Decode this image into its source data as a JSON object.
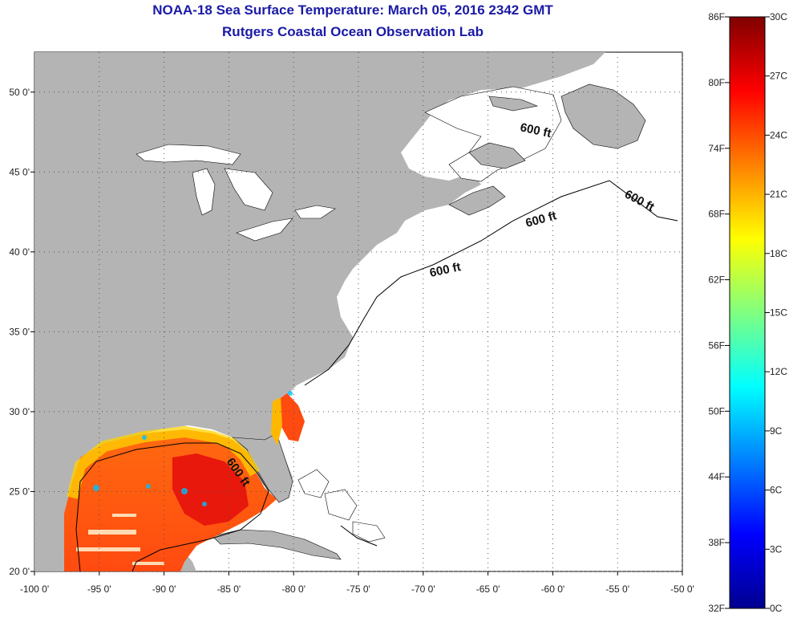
{
  "title": "NOAA-18 Sea Surface Temperature:  March 05, 2016 2342 GMT",
  "subtitle": "Rutgers Coastal Ocean Observation Lab",
  "map": {
    "lon_ticks": [
      "-100 0'",
      "-95 0'",
      "-90 0'",
      "-85 0'",
      "-80 0'",
      "-75 0'",
      "-70 0'",
      "-65 0'",
      "-60 0'",
      "-55 0'",
      "-50 0'"
    ],
    "lat_ticks": [
      "50 0'",
      "45 0'",
      "40 0'",
      "35 0'",
      "30 0'",
      "25 0'",
      "20 0'"
    ],
    "lon_range": [
      -100,
      -50
    ],
    "lat_range": [
      20,
      52.5
    ],
    "land_color": "#b4b4b4",
    "ocean_color": "#ffffff",
    "contour_labels": [
      "600 ft",
      "600 ft",
      "600 ft",
      "600 ft",
      "600 ft"
    ]
  },
  "colorbar": {
    "fahrenheit_labels": [
      "86F",
      "80F",
      "74F",
      "68F",
      "62F",
      "56F",
      "50F",
      "44F",
      "38F",
      "32F"
    ],
    "celsius_labels": [
      "30C",
      "27C",
      "24C",
      "21C",
      "18C",
      "15C",
      "12C",
      "9C",
      "6C",
      "3C",
      "0C"
    ],
    "colors": [
      "#00008f",
      "#0000ff",
      "#0080ff",
      "#00ffff",
      "#80ff80",
      "#ffff00",
      "#ff8000",
      "#ff0000",
      "#800000"
    ]
  }
}
